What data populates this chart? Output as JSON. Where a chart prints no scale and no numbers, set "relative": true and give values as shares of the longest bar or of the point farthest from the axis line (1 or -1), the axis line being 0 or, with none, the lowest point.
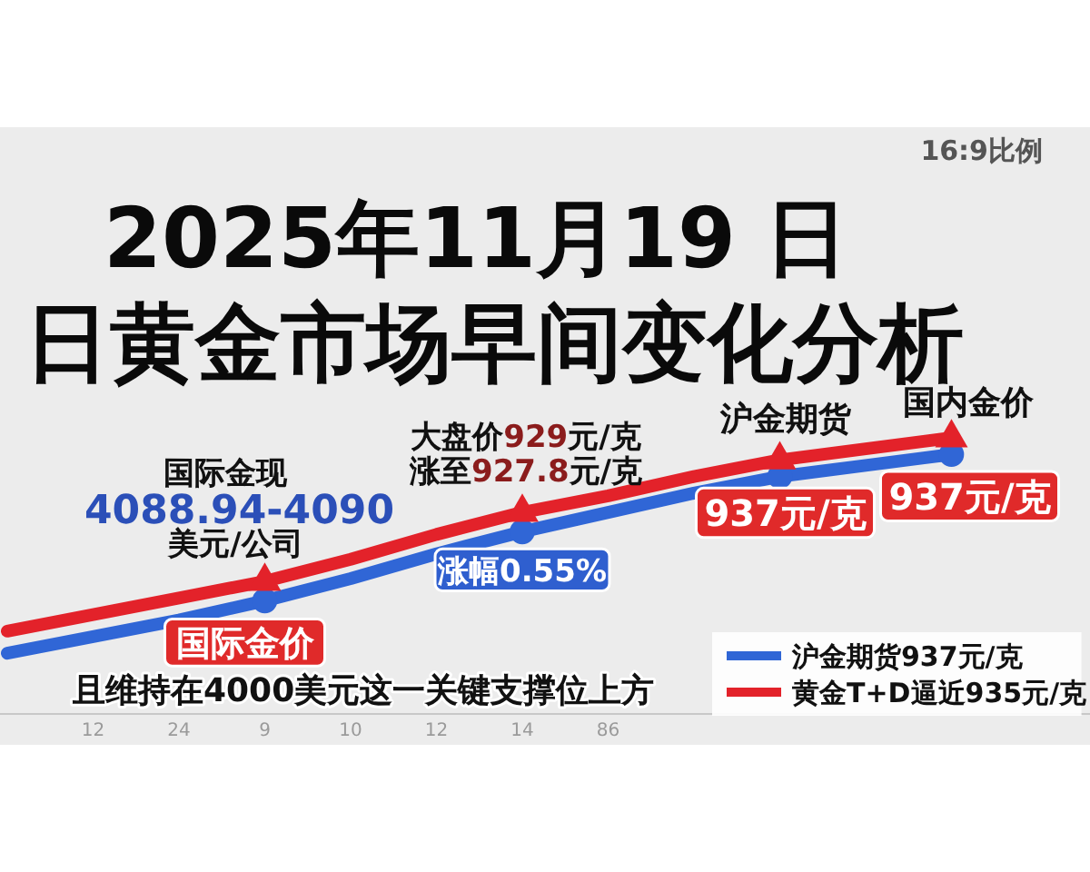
{
  "chart_data": {
    "type": "line",
    "title": "2025年11月19 日",
    "subtitle": "日黄金市场早间变化分析",
    "relative": true,
    "categories": [
      null,
      "12",
      "24",
      "9",
      "10",
      "12",
      "14",
      "86",
      null,
      null,
      null,
      null,
      null
    ],
    "series": [
      {
        "name": "沪金期货937元/克",
        "color": "#3066d6",
        "values": [
          0.22,
          0.28,
          0.34,
          0.41,
          0.49,
          0.58,
          0.66,
          0.73,
          0.8,
          0.86,
          0.9,
          0.94,
          null
        ]
      },
      {
        "name": "黄金T+D逼近935元/克",
        "color": "#e3222a",
        "values": [
          0.3,
          0.36,
          0.42,
          0.48,
          0.56,
          0.65,
          0.73,
          0.79,
          0.86,
          0.92,
          0.96,
          1,
          null
        ]
      },
      {
        "type": "scatter",
        "color": "#3066d6",
        "marker": "circle",
        "values": [
          null,
          null,
          null,
          0.41,
          null,
          null,
          0.66,
          null,
          null,
          0.86,
          null,
          0.94,
          null
        ]
      },
      {
        "type": "scatter",
        "color": "#e3222a",
        "marker": "triangle",
        "values": [
          null,
          null,
          null,
          0.48,
          null,
          null,
          0.73,
          null,
          null,
          0.92,
          null,
          1,
          null
        ]
      }
    ],
    "legend": "bottom right",
    "annotations": [
      "16:9比例",
      {
        "text": "国际金现",
        "x": "9",
        "y": 0.48
      },
      {
        "text": "4088.94-4090",
        "x": "9",
        "y": 0.48
      },
      {
        "text": "美元/公司",
        "x": "9",
        "y": 0.48
      },
      {
        "text": "国际金价",
        "x": "9",
        "y": 0.41
      },
      {
        "text": "大盘价929元/克",
        "x": "14",
        "y": 0.73
      },
      {
        "text": "涨至927.8元/克",
        "x": "14",
        "y": 0.73
      },
      {
        "text": "涨幅0.55%",
        "x": "14",
        "y": 0.66
      },
      {
        "text": "沪金期货",
        "y": 0.92
      },
      {
        "text": "937元/克",
        "y": 0.86
      },
      {
        "text": "国内金价",
        "y": 1
      },
      {
        "text": "937元/克",
        "y": 0.94
      },
      "且维持在4000美元这一关键支撑位上方"
    ]
  }
}
